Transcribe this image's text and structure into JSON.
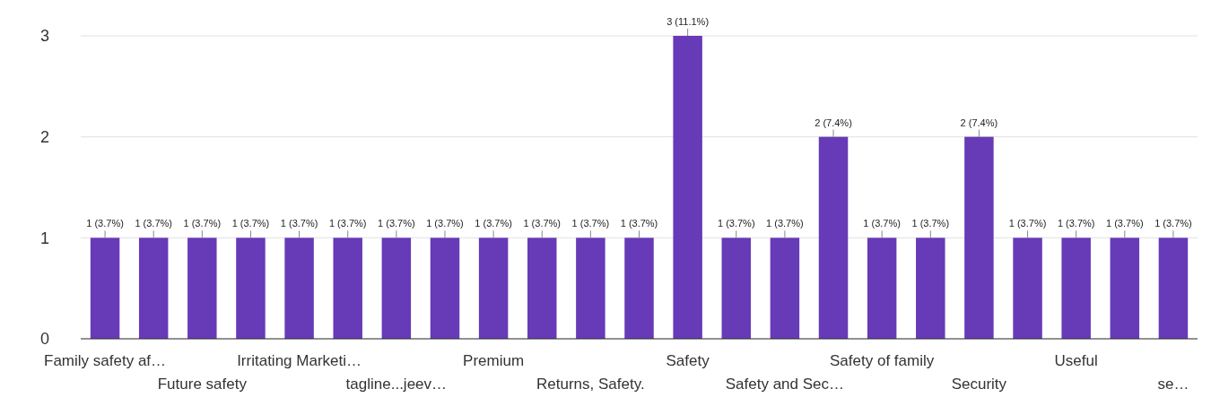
{
  "chart_data": {
    "type": "bar",
    "categories": [
      "Family safety af…",
      null,
      "Future safety",
      null,
      "Irritating Marketi…",
      null,
      "tagline...jeev…",
      null,
      "Premium",
      null,
      "Returns, Safety.",
      null,
      "Safety",
      null,
      "Safety and Sec…",
      null,
      "Safety of family",
      null,
      "Security",
      null,
      "Useful",
      null,
      "se…"
    ],
    "values": [
      1,
      1,
      1,
      1,
      1,
      1,
      1,
      1,
      1,
      1,
      1,
      1,
      3,
      1,
      1,
      2,
      1,
      1,
      2,
      1,
      1,
      1,
      1
    ],
    "value_labels": [
      "1 (3.7%)",
      "1 (3.7%)",
      "1 (3.7%)",
      "1 (3.7%)",
      "1 (3.7%)",
      "1 (3.7%)",
      "1 (3.7%)",
      "1 (3.7%)",
      "1 (3.7%)",
      "1 (3.7%)",
      "1 (3.7%)",
      "1 (3.7%)",
      "3 (11.1%)",
      "1 (3.7%)",
      "1 (3.7%)",
      "2 (7.4%)",
      "1 (3.7%)",
      "1 (3.7%)",
      "2 (7.4%)",
      "1 (3.7%)",
      "1 (3.7%)",
      "1 (3.7%)",
      "1 (3.7%)"
    ],
    "color": "#673ab7",
    "ylim": [
      0,
      3
    ],
    "yticks": [
      0,
      1,
      2,
      3
    ],
    "grid": "y"
  }
}
